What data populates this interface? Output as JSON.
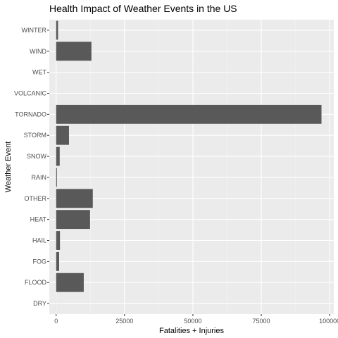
{
  "chart_data": {
    "type": "bar",
    "orientation": "horizontal",
    "title": "Health Impact of Weather Events in the US",
    "xlabel": "Fatalities + Injuries",
    "ylabel": "Weather Event",
    "categories": [
      "DRY",
      "FLOOD",
      "FOG",
      "HAIL",
      "HEAT",
      "OTHER",
      "RAIN",
      "SNOW",
      "STORM",
      "TORNADO",
      "VOLCANIC",
      "WET",
      "WIND",
      "WINTER"
    ],
    "values": [
      30,
      10100,
      1100,
      1400,
      12400,
      13400,
      300,
      1300,
      4700,
      97000,
      0,
      0,
      12900,
      700
    ],
    "xlim": [
      -2500,
      101500
    ],
    "xticks": [
      0,
      25000,
      50000,
      75000,
      100000
    ],
    "xtick_labels": [
      "0",
      "25000",
      "50000",
      "75000",
      "100000"
    ],
    "grid": true,
    "colors": {
      "bar": "#595959",
      "panel": "#ebebeb",
      "grid_major": "#ffffff"
    }
  }
}
